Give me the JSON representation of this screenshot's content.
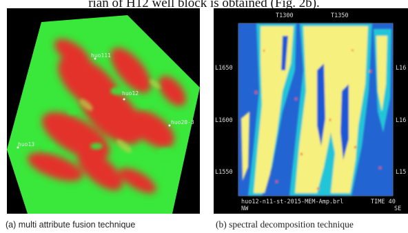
{
  "text": {
    "body_fragment": "rian of H12 well block is obtained (Fig. 2b)."
  },
  "figure_a": {
    "caption": "(a)  multi attribute fusion technique",
    "well_labels": [
      "huo111",
      "huo12",
      "huo20-3",
      "huo13"
    ],
    "colors": {
      "background": "#000000",
      "low": "#39e83a",
      "high": "#e3302a",
      "mid": "#b8d64a"
    }
  },
  "figure_b": {
    "caption": "(b) spectral decomposition technique",
    "top_ticks": [
      "T1300",
      "T1350"
    ],
    "left_ticks": [
      "L1650",
      "L1600",
      "L1550"
    ],
    "right_ticks": [
      "L16",
      "L16",
      "L15"
    ],
    "footer_left": "huo12-n11-st-2015-MEM-Amp.brl",
    "footer_right": "TIME 40",
    "corner_left": "NW",
    "corner_right": "SE",
    "colors": {
      "background": "#000000",
      "high": "#f6f07e",
      "mid": "#2f8ee0",
      "low": "#1531c4",
      "edge": "#ff3b2f",
      "rim": "#22d0d8"
    }
  }
}
